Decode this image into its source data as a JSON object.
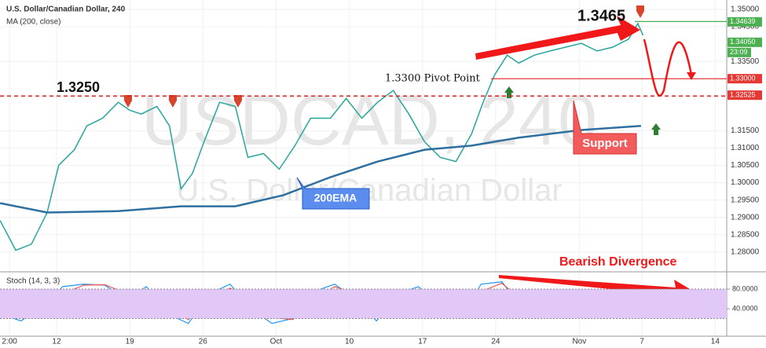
{
  "chart_data": {
    "type": "line",
    "title": "U.S. Dollar/Canadian Dollar, 240",
    "subtitle": "MA (200, close)",
    "watermark": "USDCAD, 240",
    "watermark_sub": "U.S. Dollar/Canadian Dollar",
    "xlim": [
      6.59,
      76.1
    ],
    "xticks": [
      {
        "value": 7.5,
        "label": "2:00"
      },
      {
        "value": 12,
        "label": "12"
      },
      {
        "value": 19,
        "label": "19"
      },
      {
        "value": 26,
        "label": "26"
      },
      {
        "value": 33,
        "label": "Oct"
      },
      {
        "value": 40,
        "label": "10"
      },
      {
        "value": 47,
        "label": "17"
      },
      {
        "value": 54,
        "label": "24"
      },
      {
        "value": 62,
        "label": "Nov"
      },
      {
        "value": 68,
        "label": "7"
      },
      {
        "value": 75,
        "label": "14"
      }
    ],
    "ylim": [
      1.2743,
      1.3527
    ],
    "yticks": [
      {
        "value": 1.28,
        "label": "1.28000"
      },
      {
        "value": 1.285,
        "label": "1.28500"
      },
      {
        "value": 1.29,
        "label": "1.29000"
      },
      {
        "value": 1.295,
        "label": "1.29500"
      },
      {
        "value": 1.3,
        "label": "1.30000"
      },
      {
        "value": 1.305,
        "label": "1.30500"
      },
      {
        "value": 1.31,
        "label": "1.31000"
      },
      {
        "value": 1.315,
        "label": "1.31500"
      },
      {
        "value": 1.335,
        "label": "1.33500"
      },
      {
        "value": 1.345,
        "label": "1.34500"
      },
      {
        "value": 1.35,
        "label": "1.35000"
      }
    ],
    "grid": true,
    "series": [
      {
        "color": "#26a69a",
        "x": [
          6.6,
          8.1,
          9.6,
          11.1,
          12.2,
          13.7,
          14.9,
          16.4,
          17.9,
          19.0,
          20.1,
          21.6,
          22.8,
          23.9,
          25.0,
          26.1,
          27.6,
          29.1,
          30.3,
          31.8,
          33.3,
          34.8,
          36.3,
          38.2,
          39.7,
          41.2,
          42.7,
          44.2,
          45.7,
          47.2,
          48.7,
          50.2,
          51.7,
          52.8,
          53.9,
          55.1,
          56.2,
          57.7,
          59.2,
          60.7,
          62.2,
          63.7,
          65.2,
          66.7,
          67.6,
          68.1
        ],
        "values": [
          1.2891,
          1.2805,
          1.2823,
          1.2914,
          1.305,
          1.3095,
          1.3164,
          1.3186,
          1.3232,
          1.3209,
          1.3198,
          1.322,
          1.3164,
          1.2982,
          1.3027,
          1.3118,
          1.3232,
          1.322,
          1.3073,
          1.3084,
          1.3039,
          1.3107,
          1.3186,
          1.3186,
          1.3243,
          1.3186,
          1.3232,
          1.3266,
          1.3198,
          1.3118,
          1.3073,
          1.3061,
          1.3141,
          1.3232,
          1.3311,
          1.3368,
          1.3345,
          1.3368,
          1.338,
          1.3391,
          1.3402,
          1.338,
          1.3391,
          1.3414,
          1.3459,
          1.3425
        ]
      },
      {
        "color": "#2f6f9f",
        "x": [
          6.6,
          11.1,
          17.9,
          23.9,
          29.1,
          33.7,
          38.2,
          42.7,
          47.2,
          51.7,
          56.2,
          62.2,
          67.9
        ],
        "values": [
          1.2941,
          1.2914,
          1.2918,
          1.2932,
          1.2932,
          1.2964,
          1.3016,
          1.3061,
          1.3095,
          1.3107,
          1.313,
          1.3152,
          1.3164
        ]
      }
    ],
    "price_tags": [
      {
        "value": 1.34639,
        "label": "1.34639",
        "color": "#4caf50"
      },
      {
        "value": 1.3405,
        "label": "1.34050",
        "color": "#4caf50"
      },
      {
        "value": 1.33,
        "label": "1.33000",
        "color": "#e53935"
      },
      {
        "value": 1.32525,
        "label": "1.32525",
        "color": "#e53935"
      }
    ],
    "time_tag": "23:09",
    "high_label": {
      "value": 1.3465,
      "label": "1.3465"
    },
    "resistance": {
      "value": 1.325,
      "label": "1.3250"
    },
    "pivot": {
      "value": 1.33,
      "label": "1.3300 Pivot Point"
    },
    "support_label": "Support",
    "ema_label": "200EMA",
    "divergence_label": "Bearish Divergence",
    "stoch": {
      "title": "Stoch (14, 3, 3)",
      "ylim": [
        -16,
        112
      ],
      "yticks": [
        {
          "value": 80,
          "label": "80.0000"
        },
        {
          "value": 40,
          "label": "40.0000"
        }
      ],
      "band": [
        20,
        80
      ],
      "series": [
        {
          "color": "#2196f3",
          "x": [
            6.6,
            8.6,
            10.6,
            12.6,
            14.6,
            16.6,
            18.6,
            20.6,
            22.6,
            24.6,
            26.6,
            28.6,
            30.6,
            32.6,
            34.6,
            36.6,
            38.6,
            40.6,
            42.6,
            44.6,
            46.6,
            48.6,
            50.6,
            52.6,
            54.6,
            56.6,
            58.6,
            60.6,
            62.6,
            64.6,
            66.6,
            68.6
          ],
          "values": [
            30,
            15,
            45,
            85,
            90,
            88,
            60,
            85,
            30,
            10,
            70,
            90,
            40,
            10,
            20,
            75,
            90,
            60,
            15,
            70,
            85,
            50,
            20,
            90,
            95,
            40,
            75,
            60,
            20,
            60,
            75,
            45
          ]
        },
        {
          "color": "#ef5350",
          "x": [
            6.6,
            8.6,
            10.6,
            12.6,
            14.6,
            16.6,
            18.6,
            20.6,
            22.6,
            24.6,
            26.6,
            28.6,
            30.6,
            32.6,
            34.6,
            36.6,
            38.6,
            40.6,
            42.6,
            44.6,
            46.6,
            48.6,
            50.6,
            52.6,
            54.6,
            56.6,
            58.6,
            60.6,
            62.6,
            64.6,
            66.6,
            68.6
          ],
          "values": [
            35,
            22,
            32,
            70,
            88,
            89,
            72,
            75,
            45,
            18,
            55,
            82,
            55,
            22,
            18,
            60,
            85,
            70,
            30,
            55,
            80,
            60,
            30,
            75,
            92,
            55,
            68,
            62,
            32,
            50,
            70,
            52
          ]
        }
      ]
    }
  }
}
